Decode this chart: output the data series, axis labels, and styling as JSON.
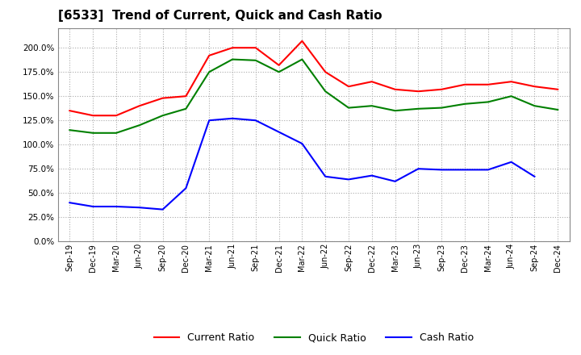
{
  "title": "[6533]  Trend of Current, Quick and Cash Ratio",
  "labels": [
    "Sep-19",
    "Dec-19",
    "Mar-20",
    "Jun-20",
    "Sep-20",
    "Dec-20",
    "Mar-21",
    "Jun-21",
    "Sep-21",
    "Dec-21",
    "Mar-22",
    "Jun-22",
    "Sep-22",
    "Dec-22",
    "Mar-23",
    "Jun-23",
    "Sep-23",
    "Dec-23",
    "Mar-24",
    "Jun-24",
    "Sep-24",
    "Dec-24"
  ],
  "current_ratio": [
    1.35,
    1.3,
    1.3,
    1.4,
    1.48,
    1.5,
    1.92,
    2.0,
    2.0,
    1.82,
    2.07,
    1.75,
    1.6,
    1.65,
    1.57,
    1.55,
    1.57,
    1.62,
    1.62,
    1.65,
    1.6,
    1.57
  ],
  "quick_ratio": [
    1.15,
    1.12,
    1.12,
    1.2,
    1.3,
    1.37,
    1.75,
    1.88,
    1.87,
    1.75,
    1.88,
    1.55,
    1.38,
    1.4,
    1.35,
    1.37,
    1.38,
    1.42,
    1.44,
    1.5,
    1.4,
    1.36
  ],
  "cash_ratio": [
    0.4,
    0.36,
    0.36,
    0.35,
    0.33,
    0.55,
    1.25,
    1.27,
    1.25,
    1.13,
    1.01,
    0.67,
    0.64,
    0.68,
    0.62,
    0.75,
    0.74,
    0.74,
    0.74,
    0.82,
    0.67,
    null
  ],
  "current_color": "#FF0000",
  "quick_color": "#008000",
  "cash_color": "#0000FF",
  "background_color": "#FFFFFF",
  "plot_bg_color": "#FFFFFF",
  "grid_color": "#AAAAAA",
  "ylim": [
    0.0,
    2.2
  ],
  "yticks": [
    0.0,
    0.25,
    0.5,
    0.75,
    1.0,
    1.25,
    1.5,
    1.75,
    2.0
  ],
  "legend_labels": [
    "Current Ratio",
    "Quick Ratio",
    "Cash Ratio"
  ]
}
